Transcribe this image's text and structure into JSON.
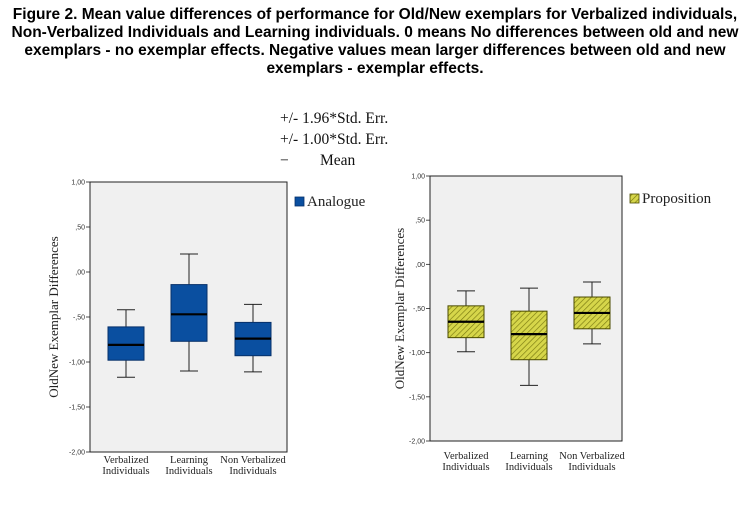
{
  "caption": {
    "line1": "Figure 2. Mean value differences of performance for Old/New exemplars for Verbalized individuals,",
    "line2": "Non-Verbalized Individuals and Learning individuals. 0 means No differences between old and new",
    "line3": "exemplars - no exemplar effects. Negative values mean larger differences between old and new",
    "line4": "exemplars - exemplar effects."
  },
  "key": {
    "ci196": "+/- 1.96*Std. Err.",
    "ci100": "+/- 1.00*Std. Err.",
    "mean_symbol": "−",
    "mean": "Mean"
  },
  "colors": {
    "analogue": "#0a4fa0",
    "proposition": "#d6d64a",
    "plot_bg": "#f0f0f0"
  },
  "chart_data": [
    {
      "type": "box",
      "ylabel": "OldNew Exemplar Differences",
      "ylim": [
        -2.0,
        1.0
      ],
      "yticks": [
        1.0,
        0.5,
        0.0,
        -0.5,
        -1.0,
        -1.5,
        -2.0
      ],
      "ytick_labels": [
        "1,00",
        ",50",
        ",00",
        "-,50",
        "-1,00",
        "-1,50",
        "-2,00"
      ],
      "categories": [
        [
          "Verbalized",
          "Individuals"
        ],
        [
          "Learning",
          "Individuals"
        ],
        [
          "Non Verbalized",
          "Individuals"
        ]
      ],
      "legend": "Analogue",
      "series": [
        {
          "whisker_low": -1.17,
          "box_low": -0.98,
          "mean": -0.81,
          "box_high": -0.61,
          "whisker_high": -0.42
        },
        {
          "whisker_low": -1.1,
          "box_low": -0.77,
          "mean": -0.47,
          "box_high": -0.14,
          "whisker_high": 0.2
        },
        {
          "whisker_low": -1.11,
          "box_low": -0.93,
          "mean": -0.74,
          "box_high": -0.56,
          "whisker_high": -0.36
        }
      ]
    },
    {
      "type": "box",
      "ylabel": "OldNew Exemplar Differences",
      "ylim": [
        -2.0,
        1.0
      ],
      "yticks": [
        1.0,
        0.5,
        0.0,
        -0.5,
        -1.0,
        -1.5,
        -2.0
      ],
      "ytick_labels": [
        "1,00",
        ",50",
        ",00",
        "-,50",
        "-1,00",
        "-1,50",
        "-2,00"
      ],
      "categories": [
        [
          "Verbalized",
          "Individuals"
        ],
        [
          "Learning",
          "Individuals"
        ],
        [
          "Non Verbalized",
          "Individuals"
        ]
      ],
      "legend": "Proposition",
      "series": [
        {
          "whisker_low": -0.99,
          "box_low": -0.83,
          "mean": -0.65,
          "box_high": -0.47,
          "whisker_high": -0.3
        },
        {
          "whisker_low": -1.37,
          "box_low": -1.08,
          "mean": -0.79,
          "box_high": -0.53,
          "whisker_high": -0.27
        },
        {
          "whisker_low": -0.9,
          "box_low": -0.73,
          "mean": -0.55,
          "box_high": -0.37,
          "whisker_high": -0.2
        }
      ]
    }
  ]
}
